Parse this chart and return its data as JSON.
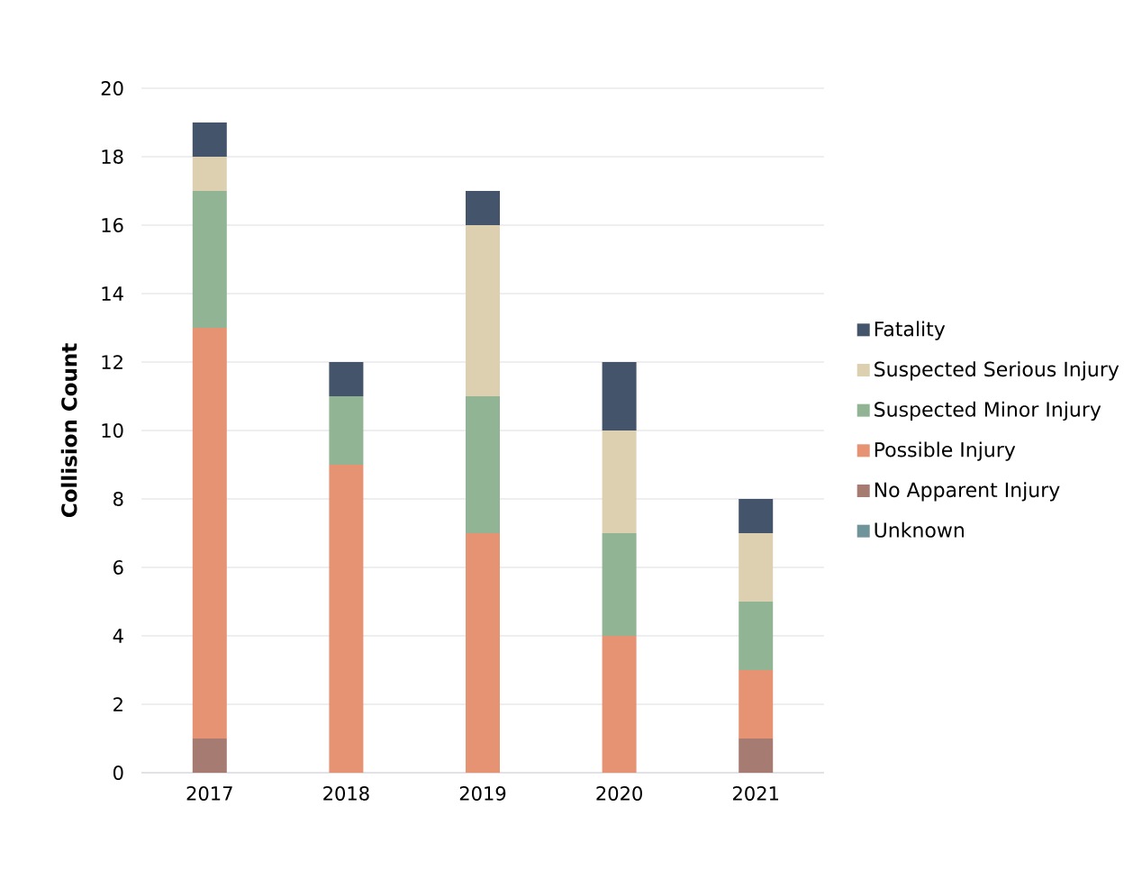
{
  "chart_data": {
    "type": "bar",
    "stacked": true,
    "ylabel": "Collision Count",
    "categories": [
      "2017",
      "2018",
      "2019",
      "2020",
      "2021"
    ],
    "series": [
      {
        "name": "Unknown",
        "color": "#6f959a",
        "values": [
          0,
          0,
          0,
          0,
          0
        ]
      },
      {
        "name": "No Apparent Injury",
        "color": "#a67b72",
        "values": [
          1,
          0,
          0,
          0,
          1
        ]
      },
      {
        "name": "Possible Injury",
        "color": "#e69373",
        "values": [
          12,
          9,
          7,
          4,
          2
        ]
      },
      {
        "name": "Suspected Minor Injury",
        "color": "#91b594",
        "values": [
          4,
          2,
          4,
          3,
          2
        ]
      },
      {
        "name": "Suspected Serious Injury",
        "color": "#ddd0b0",
        "values": [
          1,
          0,
          5,
          3,
          2
        ]
      },
      {
        "name": "Fatality",
        "color": "#44546a",
        "values": [
          1,
          1,
          1,
          2,
          1
        ]
      }
    ],
    "ylim": [
      0,
      20
    ],
    "yticks": [
      0,
      2,
      4,
      6,
      8,
      10,
      12,
      14,
      16,
      18,
      20
    ],
    "grid": "y",
    "legend": "right"
  }
}
